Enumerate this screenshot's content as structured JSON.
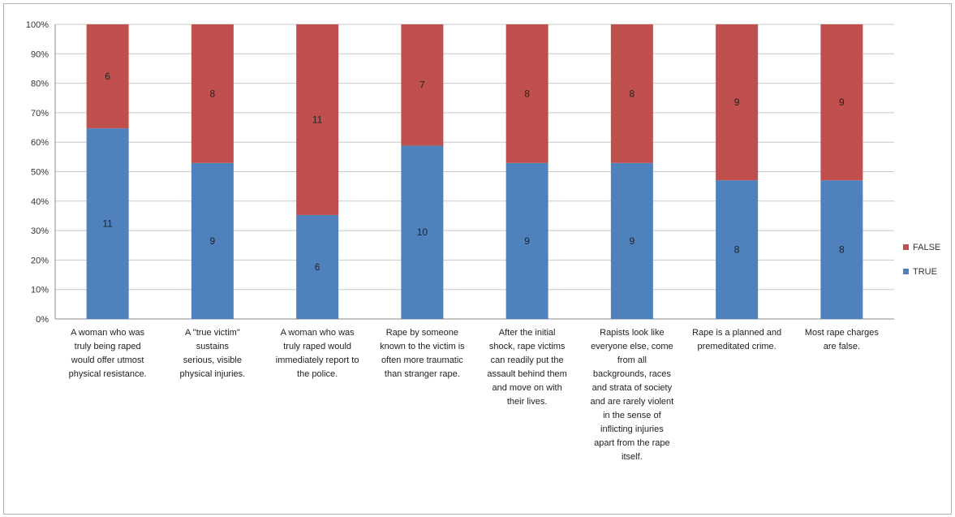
{
  "chart_data": {
    "type": "bar",
    "stacked": "percent",
    "title": "",
    "xlabel": "",
    "ylabel": "",
    "ylim": [
      0,
      100
    ],
    "y_ticks": [
      "0%",
      "10%",
      "20%",
      "30%",
      "40%",
      "50%",
      "60%",
      "70%",
      "80%",
      "90%",
      "100%"
    ],
    "grid": true,
    "legend_position": "right",
    "categories": [
      [
        "A woman who was",
        "truly being raped",
        "would offer utmost",
        "physical resistance."
      ],
      [
        "A \"true victim\"",
        "sustains",
        "serious, visible",
        "physical injuries."
      ],
      [
        "A woman who was",
        "truly raped would",
        "immediately report to",
        "the police."
      ],
      [
        "Rape by someone",
        "known to the victim is",
        "often more traumatic",
        "than stranger rape."
      ],
      [
        "After the initial",
        "shock, rape victims",
        "can readily put the",
        "assault behind them",
        "and move on with",
        "their lives."
      ],
      [
        "Rapists look like",
        "everyone else, come",
        "from all",
        "backgrounds, races",
        "and strata of society",
        "and are rarely violent",
        "in the sense of",
        "inflicting injuries",
        "apart from the rape",
        "itself."
      ],
      [
        "Rape is a planned and",
        "premeditated crime."
      ],
      [
        "Most rape charges",
        "are false."
      ]
    ],
    "series": [
      {
        "name": "TRUE",
        "color": "#4f81bd",
        "values": [
          11,
          9,
          6,
          10,
          9,
          9,
          8,
          8
        ]
      },
      {
        "name": "FALSE",
        "color": "#c0504d",
        "values": [
          6,
          8,
          11,
          7,
          8,
          8,
          9,
          9
        ]
      }
    ],
    "legend_order": [
      "FALSE",
      "TRUE"
    ]
  }
}
